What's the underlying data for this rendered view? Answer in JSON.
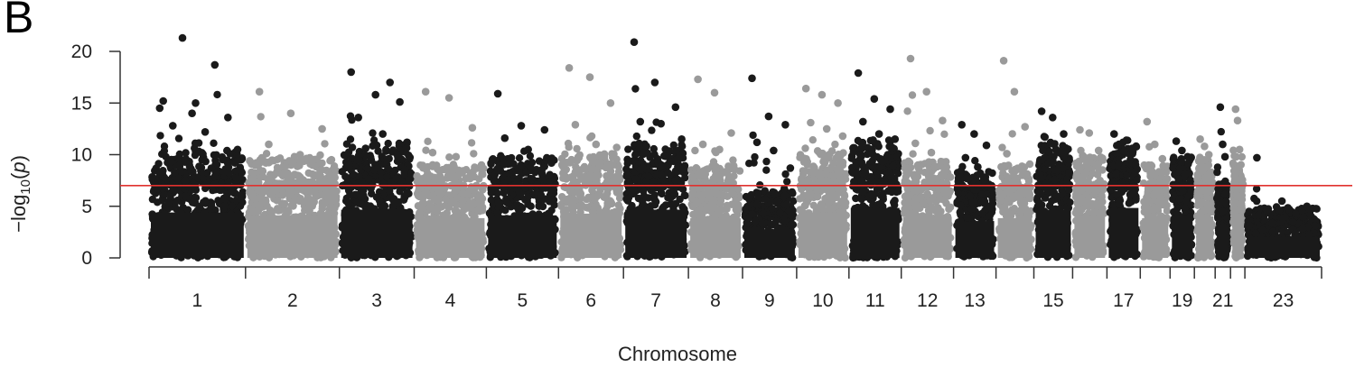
{
  "panel_label": "B",
  "chart_data": {
    "type": "scatter",
    "subtype": "manhattan",
    "title": "",
    "xlabel": "Chromosome",
    "ylabel_parts": {
      "prefix": "−log",
      "sub": "10",
      "open": "(",
      "var": "p",
      "close": ")"
    },
    "ylim": [
      0,
      22
    ],
    "yticks": [
      0,
      5,
      10,
      15,
      20
    ],
    "threshold": 7.0,
    "threshold_color": "#e0312f",
    "colors": {
      "odd": "#1a1a1a",
      "even": "#9a9a9a"
    },
    "chromosomes": [
      {
        "chr": 1,
        "label": "1",
        "body": 8.0,
        "peaks": [
          15.2,
          15.0,
          13.6,
          12.8,
          12.2,
          10.5,
          21.3,
          18.7,
          14.5,
          14.0
        ]
      },
      {
        "chr": 2,
        "label": "2",
        "body": 7.5,
        "peaks": [
          16.1,
          14.0,
          12.5,
          11.0,
          10.0,
          9.5
        ]
      },
      {
        "chr": 3,
        "label": "3",
        "body": 8.5,
        "peaks": [
          18.0,
          15.8,
          15.1,
          13.6,
          12.0,
          11.2,
          10.6,
          17.0
        ]
      },
      {
        "chr": 4,
        "label": "4",
        "body": 7.0,
        "peaks": [
          16.1,
          15.5,
          12.6,
          10.2,
          9.8
        ]
      },
      {
        "chr": 5,
        "label": "5",
        "body": 7.5,
        "peaks": [
          15.9,
          12.8,
          12.4,
          11.6,
          10.5,
          9.2
        ]
      },
      {
        "chr": 6,
        "label": "6",
        "body": 7.8,
        "peaks": [
          18.4,
          17.5,
          15.0,
          12.9,
          11.0,
          10.7
        ]
      },
      {
        "chr": 7,
        "label": "7",
        "body": 8.5,
        "peaks": [
          20.9,
          17.0,
          14.6,
          13.2,
          13.0,
          11.5,
          10.8
        ]
      },
      {
        "chr": 8,
        "label": "8",
        "body": 7.0,
        "peaks": [
          17.3,
          16.0,
          12.1,
          11.0,
          10.5
        ]
      },
      {
        "chr": 9,
        "label": "9",
        "body": 5.0,
        "peaks": [
          17.4,
          13.7,
          12.9,
          11.2,
          10.4,
          8.7
        ]
      },
      {
        "chr": 10,
        "label": "10",
        "body": 8.0,
        "peaks": [
          16.4,
          15.8,
          15.0,
          13.1,
          12.5,
          11.8
        ]
      },
      {
        "chr": 11,
        "label": "11",
        "body": 8.8,
        "peaks": [
          17.9,
          15.4,
          14.4,
          13.2,
          12.0,
          11.5
        ]
      },
      {
        "chr": 12,
        "label": "12",
        "body": 7.2,
        "peaks": [
          19.3,
          16.1,
          13.3,
          11.1,
          10.2
        ]
      },
      {
        "chr": 13,
        "label": "13",
        "body": 6.5,
        "peaks": [
          12.9,
          12.0,
          10.9,
          9.7,
          8.8
        ]
      },
      {
        "chr": 14,
        "label": "",
        "body": 7.0,
        "peaks": [
          19.1,
          16.1,
          12.7,
          10.1
        ]
      },
      {
        "chr": 15,
        "label": "15",
        "body": 8.5,
        "peaks": [
          14.2,
          13.6,
          12.0,
          11.7,
          10.5
        ]
      },
      {
        "chr": 16,
        "label": "",
        "body": 7.5,
        "peaks": [
          12.4,
          12.1,
          10.4,
          9.9
        ]
      },
      {
        "chr": 17,
        "label": "17",
        "body": 8.8,
        "peaks": [
          12.0,
          11.2,
          10.6,
          10.1
        ]
      },
      {
        "chr": 18,
        "label": "",
        "body": 7.0,
        "peaks": [
          13.2,
          11.0,
          9.6
        ]
      },
      {
        "chr": 19,
        "label": "19",
        "body": 7.5,
        "peaks": [
          11.3,
          10.4,
          9.8
        ]
      },
      {
        "chr": 20,
        "label": "",
        "body": 7.3,
        "peaks": [
          11.5,
          10.8,
          10.0
        ]
      },
      {
        "chr": 21,
        "label": "21",
        "body": 5.5,
        "peaks": [
          14.6,
          11.0,
          9.8
        ]
      },
      {
        "chr": 22,
        "label": "",
        "body": 7.0,
        "peaks": [
          14.4,
          13.3,
          10.5,
          9.8
        ]
      },
      {
        "chr": 23,
        "label": "23",
        "body": 3.8,
        "peaks": [
          9.7,
          5.5,
          5.0
        ]
      }
    ]
  }
}
